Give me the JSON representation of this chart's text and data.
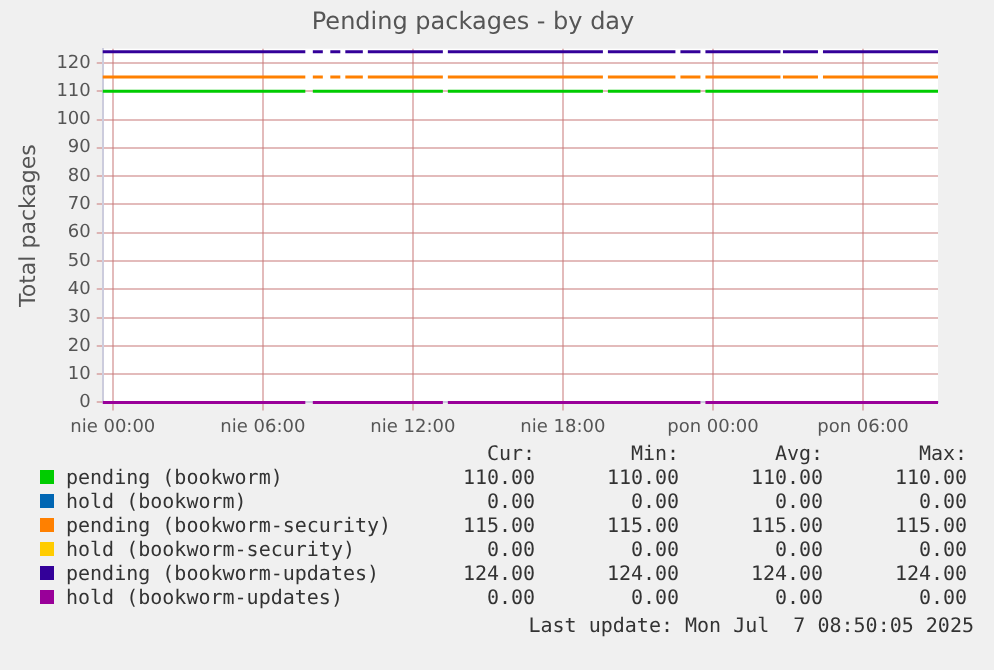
{
  "chart_data": {
    "type": "line",
    "title": "Pending packages - by day",
    "ylabel": "Total packages",
    "x": [
      "2025-07-05T23:36",
      "2025-07-06T07:42",
      "2025-07-06T07:51",
      "2025-07-06T08:00",
      "2025-07-06T08:24",
      "2025-07-06T08:33",
      "2025-07-06T08:42",
      "2025-07-06T09:06",
      "2025-07-06T09:12",
      "2025-07-06T09:18",
      "2025-07-06T10:00",
      "2025-07-06T10:06",
      "2025-07-06T10:12",
      "2025-07-06T13:12",
      "2025-07-06T13:18",
      "2025-07-06T13:24",
      "2025-07-06T19:36",
      "2025-07-06T19:42",
      "2025-07-06T19:48",
      "2025-07-06T22:30",
      "2025-07-06T22:36",
      "2025-07-06T22:42",
      "2025-07-06T23:30",
      "2025-07-06T23:36",
      "2025-07-06T23:42",
      "2025-07-07T02:42",
      "2025-07-07T02:45",
      "2025-07-07T02:48",
      "2025-07-07T04:12",
      "2025-07-07T04:18",
      "2025-07-07T04:24",
      "2025-07-07T09:00"
    ],
    "xlim": [
      "2025-07-05T23:36",
      "2025-07-07T09:00"
    ],
    "xticks": [
      {
        "value": "2025-07-06T00:00",
        "label": "nie 00:00"
      },
      {
        "value": "2025-07-06T06:00",
        "label": "nie 06:00"
      },
      {
        "value": "2025-07-06T12:00",
        "label": "nie 12:00"
      },
      {
        "value": "2025-07-06T18:00",
        "label": "nie 18:00"
      },
      {
        "value": "2025-07-07T00:00",
        "label": "pon 00:00"
      },
      {
        "value": "2025-07-07T06:00",
        "label": "pon 06:00"
      }
    ],
    "ylim": [
      0,
      125
    ],
    "yticks": [
      0,
      10,
      20,
      30,
      40,
      50,
      60,
      70,
      80,
      90,
      100,
      110,
      120
    ],
    "grid": true,
    "legend": "bottom",
    "marker": "none",
    "line_style": "solid",
    "series": [
      {
        "name": "pending (bookworm)",
        "color": "#00cc00",
        "values": [
          110,
          110,
          null,
          110,
          110,
          110,
          110,
          110,
          110,
          110,
          110,
          110,
          110,
          110,
          null,
          110,
          110,
          null,
          110,
          110,
          110,
          110,
          110,
          null,
          110,
          110,
          110,
          110,
          110,
          110,
          110,
          110
        ]
      },
      {
        "name": "hold (bookworm)",
        "color": "#0066b3",
        "values": [
          null,
          null,
          null,
          null,
          null,
          null,
          null,
          null,
          null,
          null,
          null,
          null,
          null,
          null,
          null,
          null,
          null,
          null,
          null,
          null,
          null,
          null,
          null,
          null,
          null,
          null,
          null,
          null,
          null,
          null,
          null,
          null
        ]
      },
      {
        "name": "pending (bookworm-security)",
        "color": "#ff8000",
        "values": [
          115,
          115,
          null,
          115,
          115,
          null,
          115,
          115,
          null,
          115,
          115,
          null,
          115,
          115,
          null,
          115,
          115,
          null,
          115,
          115,
          null,
          115,
          115,
          null,
          115,
          115,
          null,
          115,
          115,
          null,
          115,
          115
        ]
      },
      {
        "name": "hold (bookworm-security)",
        "color": "#ffcc00",
        "values": [
          null,
          null,
          null,
          null,
          null,
          null,
          null,
          null,
          null,
          null,
          null,
          null,
          null,
          null,
          null,
          null,
          null,
          null,
          null,
          null,
          null,
          null,
          null,
          null,
          null,
          null,
          null,
          null,
          null,
          null,
          null,
          null
        ]
      },
      {
        "name": "pending (bookworm-updates)",
        "color": "#330099",
        "values": [
          124,
          124,
          null,
          124,
          124,
          null,
          124,
          124,
          null,
          124,
          124,
          null,
          124,
          124,
          null,
          124,
          124,
          null,
          124,
          124,
          null,
          124,
          124,
          null,
          124,
          124,
          null,
          124,
          124,
          null,
          124,
          124
        ]
      },
      {
        "name": "hold (bookworm-updates)",
        "color": "#990099",
        "values": [
          0,
          0,
          null,
          0,
          0,
          0,
          0,
          0,
          0,
          0,
          0,
          0,
          0,
          0,
          null,
          0,
          0,
          0,
          0,
          0,
          0,
          0,
          0,
          null,
          0,
          0,
          0,
          0,
          0,
          0,
          0,
          0
        ]
      }
    ],
    "annotations": [
      "Cur:",
      "Min:",
      "Avg:",
      "Max:",
      "110.00",
      "110.00",
      "110.00",
      "110.00",
      "0.00",
      "0.00",
      "0.00",
      "0.00",
      "115.00",
      "115.00",
      "115.00",
      "115.00",
      "0.00",
      "0.00",
      "0.00",
      "0.00",
      "124.00",
      "124.00",
      "124.00",
      "124.00",
      "0.00",
      "0.00",
      "0.00",
      "0.00",
      "Last update: Mon Jul  7 08:50:05 2025"
    ]
  }
}
